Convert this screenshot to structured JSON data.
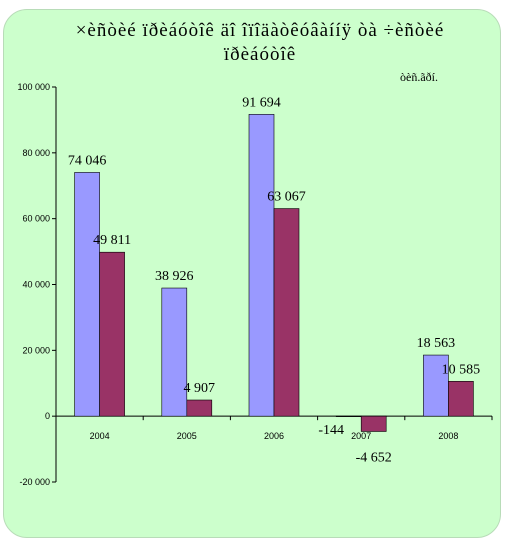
{
  "chart_data": {
    "type": "bar",
    "title_line1": "×èñòèé ïðèáóòîê äî  îïîäàòêóâàííÿ òà ÷èñòèé",
    "title_line2": "ïðèáóòîê",
    "unit": "òèñ.ãðí.",
    "categories": [
      "2004",
      "2005",
      "2006",
      "2007",
      "2008"
    ],
    "series": [
      {
        "values": [
          74046,
          38926,
          91694,
          -144,
          18563
        ],
        "color": "#9999ff"
      },
      {
        "values": [
          49811,
          4907,
          63067,
          -4652,
          10585
        ],
        "color": "#993366"
      }
    ],
    "data_labels": [
      [
        "74 046",
        "38 926",
        "91 694",
        "-144",
        "18 563"
      ],
      [
        "49 811",
        "4 907",
        "63 067",
        "-4 652",
        "10 585"
      ]
    ],
    "yticks": [
      -20000,
      0,
      20000,
      40000,
      60000,
      80000,
      100000
    ],
    "ytick_labels": [
      "-20 000",
      "0",
      "20 000",
      "40 000",
      "60 000",
      "80 000",
      "100 000"
    ],
    "ylim": [
      -20000,
      100000
    ],
    "grid": false,
    "legend": "none"
  }
}
